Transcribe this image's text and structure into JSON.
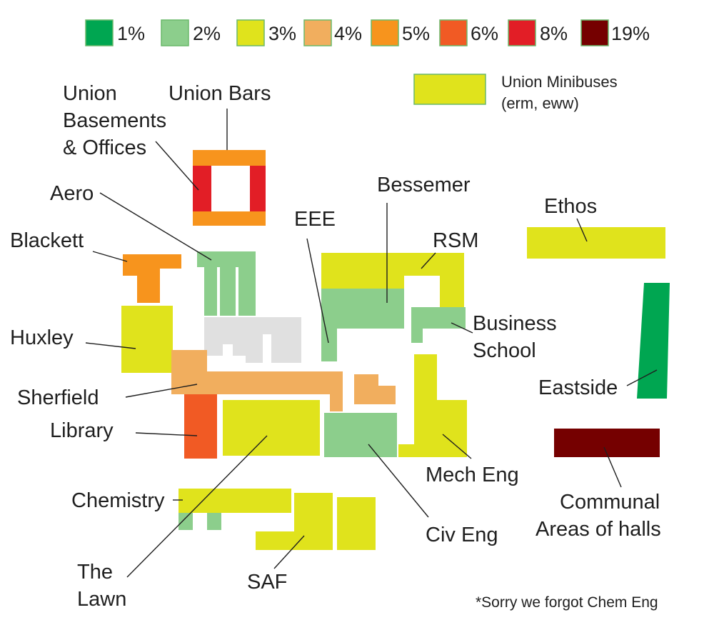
{
  "legend": [
    {
      "label": "1%",
      "color": "#00a651"
    },
    {
      "label": "2%",
      "color": "#8cce8c"
    },
    {
      "label": "3%",
      "color": "#e0e31c"
    },
    {
      "label": "4%",
      "color": "#f1ae5e"
    },
    {
      "label": "5%",
      "color": "#f7941d"
    },
    {
      "label": "6%",
      "color": "#f15a24"
    },
    {
      "label": "8%",
      "color": "#e21e26"
    },
    {
      "label": "19%",
      "color": "#750000"
    }
  ],
  "other_color": "#e0e0e0",
  "minibus": {
    "line1": "Union Minibuses",
    "line2": "(erm, eww)",
    "percent": "3%"
  },
  "buildings": [
    {
      "name": "Union Bars",
      "percent": "5%"
    },
    {
      "name": "Union Basements & Offices",
      "percent": "8%"
    },
    {
      "name": "Aero",
      "percent": "2%"
    },
    {
      "name": "Blackett",
      "percent": "5%"
    },
    {
      "name": "Huxley",
      "percent": "3%"
    },
    {
      "name": "Sherfield",
      "percent": "4%"
    },
    {
      "name": "Library",
      "percent": "6%"
    },
    {
      "name": "EEE",
      "percent": "2%"
    },
    {
      "name": "Bessemer",
      "percent": "2%"
    },
    {
      "name": "RSM",
      "percent": "3%"
    },
    {
      "name": "Business School",
      "percent": "2%"
    },
    {
      "name": "Mech Eng",
      "percent": "3%"
    },
    {
      "name": "Civ Eng",
      "percent": "2%"
    },
    {
      "name": "The Lawn",
      "percent": "3%"
    },
    {
      "name": "Chemistry",
      "percent": "3%"
    },
    {
      "name": "SAF",
      "percent": "3%"
    },
    {
      "name": "Ethos",
      "percent": "3%"
    },
    {
      "name": "Eastside",
      "percent": "1%"
    },
    {
      "name": "Communal Areas of halls",
      "percent": "19%"
    }
  ],
  "labels": {
    "union_bars": "Union Bars",
    "union_basements_1": "Union",
    "union_basements_2": "Basements",
    "union_basements_3": "& Offices",
    "aero": "Aero",
    "blackett": "Blackett",
    "huxley": "Huxley",
    "sherfield": "Sherfield",
    "library": "Library",
    "eee": "EEE",
    "bessemer": "Bessemer",
    "rsm": "RSM",
    "business_1": "Business",
    "business_2": "School",
    "mech_eng": "Mech Eng",
    "civ_eng": "Civ Eng",
    "lawn_1": "The",
    "lawn_2": "Lawn",
    "chemistry": "Chemistry",
    "saf": "SAF",
    "ethos": "Ethos",
    "eastside": "Eastside",
    "communal_1": "Communal",
    "communal_2": "Areas of halls"
  },
  "footnote": "*Sorry we forgot Chem Eng"
}
